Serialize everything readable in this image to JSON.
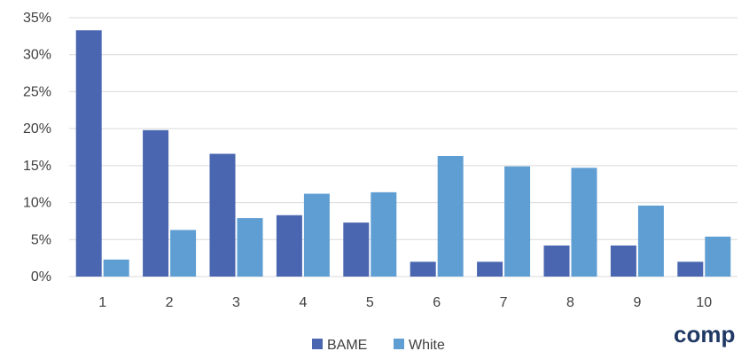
{
  "chart_data": {
    "type": "bar",
    "categories": [
      "1",
      "2",
      "3",
      "4",
      "5",
      "6",
      "7",
      "8",
      "9",
      "10"
    ],
    "series": [
      {
        "name": "BAME",
        "values": [
          33.3,
          19.8,
          16.6,
          8.3,
          7.3,
          2.0,
          2.0,
          4.2,
          4.2,
          2.0
        ]
      },
      {
        "name": "White",
        "values": [
          2.3,
          6.3,
          7.9,
          11.2,
          11.4,
          16.3,
          14.9,
          14.7,
          9.6,
          5.4
        ]
      }
    ],
    "ylim": [
      0,
      35
    ],
    "yticks": [
      0,
      5,
      10,
      15,
      20,
      25,
      30,
      35
    ],
    "ytick_labels": [
      "0%",
      "5%",
      "10%",
      "15%",
      "20%",
      "25%",
      "30%",
      "35%"
    ],
    "grid": true,
    "legend": "bottom",
    "colors": {
      "BAME": "#4a66b0",
      "White": "#5f9ed3",
      "grid": "#d9d9d9"
    }
  },
  "watermark": "comp"
}
